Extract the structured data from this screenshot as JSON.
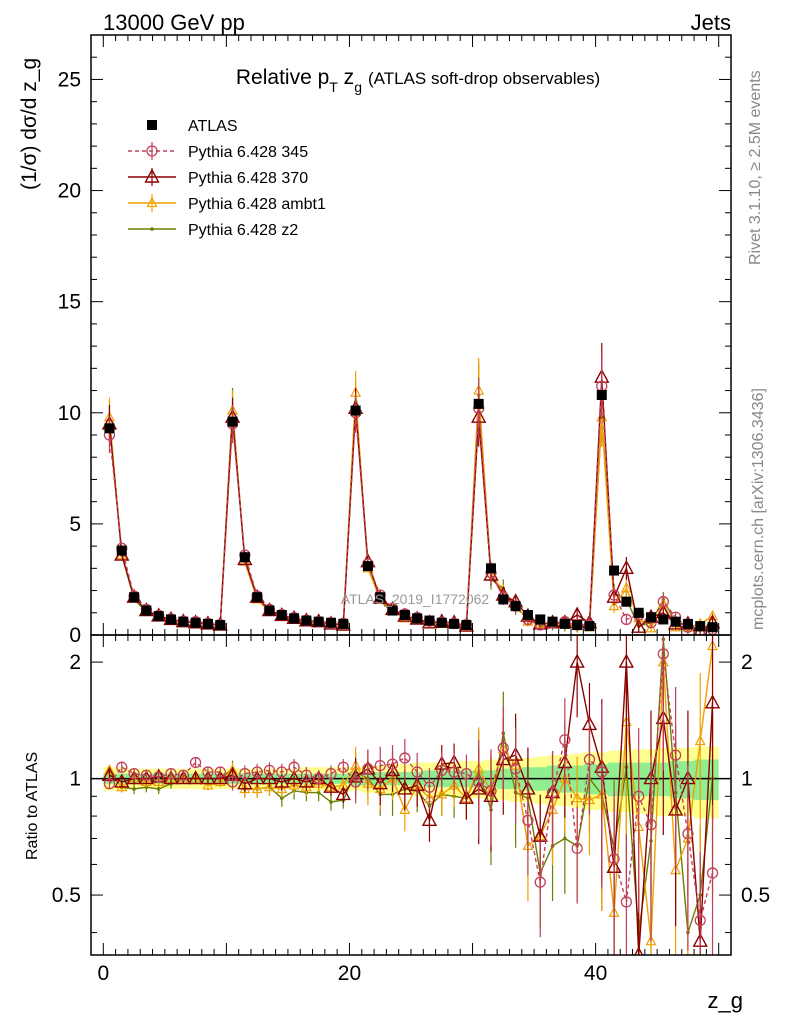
{
  "header": {
    "energy_label": "13000 GeV pp",
    "category_label": "Jets"
  },
  "side_labels": {
    "rivet": "Rivet 3.1.10, ≥ 2.5M events",
    "mcplots": "mcplots.cern.ch [arXiv:1306.3436]"
  },
  "watermark": "ATLAS_2019_I1772062",
  "colors": {
    "atlas": "#000000",
    "p345": "#c0405a",
    "p370": "#8b0000",
    "ambt1": "#f0a000",
    "z2": "#6b7f00",
    "band_inner": "#90ee90",
    "band_outer": "#ffff90"
  },
  "chart_data": [
    {
      "type": "line",
      "panel": "main",
      "title": "Relative p_T z_g (ATLAS soft-drop observables)",
      "title_parts": {
        "pre": "Relative p",
        "sub": "T",
        "mid": " z",
        "sub2": "g",
        "post": "(ATLAS soft-drop observables)"
      },
      "ylabel": "(1/σ) dσ/d z_g",
      "ylim": [
        0,
        27
      ],
      "xlim": [
        -1,
        51
      ],
      "yticks": [
        0,
        5,
        10,
        15,
        20,
        25
      ],
      "legend_position": "top-left",
      "x": [
        0.5,
        1.5,
        2.5,
        3.5,
        4.5,
        5.5,
        6.5,
        7.5,
        8.5,
        9.5,
        10.5,
        11.5,
        12.5,
        13.5,
        14.5,
        15.5,
        16.5,
        17.5,
        18.5,
        19.5,
        20.5,
        21.5,
        22.5,
        23.5,
        24.5,
        25.5,
        26.5,
        27.5,
        28.5,
        29.5,
        30.5,
        31.5,
        32.5,
        33.5,
        34.5,
        35.5,
        36.5,
        37.5,
        38.5,
        39.5,
        40.5,
        41.5,
        42.5,
        43.5,
        44.5,
        45.5,
        46.5,
        47.5,
        48.5,
        49.5
      ],
      "series": [
        {
          "name": "ATLAS",
          "key": "atlas",
          "marker": "square",
          "values": [
            9.3,
            3.8,
            1.7,
            1.1,
            0.85,
            0.7,
            0.6,
            0.55,
            0.5,
            0.45,
            9.6,
            3.5,
            1.7,
            1.1,
            0.9,
            0.75,
            0.65,
            0.6,
            0.55,
            0.5,
            10.1,
            3.1,
            1.7,
            1.1,
            0.9,
            0.75,
            0.65,
            0.55,
            0.5,
            0.45,
            10.4,
            3.0,
            1.6,
            1.3,
            0.9,
            0.7,
            0.6,
            0.5,
            0.45,
            0.4,
            10.8,
            2.9,
            1.5,
            1.0,
            0.8,
            0.7,
            0.6,
            0.5,
            0.4,
            0.35
          ]
        },
        {
          "name": "Pythia 6.428 345",
          "key": "p345",
          "marker": "circle-open",
          "dash": true,
          "values": [
            9.0,
            3.9,
            1.75,
            1.15,
            0.88,
            0.72,
            0.62,
            0.6,
            0.52,
            0.47,
            9.5,
            3.6,
            1.75,
            1.15,
            0.92,
            0.78,
            0.66,
            0.6,
            0.55,
            0.52,
            10.0,
            3.2,
            1.8,
            1.2,
            0.95,
            0.78,
            0.62,
            0.58,
            0.52,
            0.47,
            10.2,
            2.8,
            1.7,
            1.3,
            0.7,
            0.45,
            0.55,
            0.6,
            0.45,
            0.45,
            11.2,
            1.8,
            0.7,
            0.9,
            0.55,
            1.5,
            0.8,
            0.35,
            0.2,
            0.25
          ]
        },
        {
          "name": "Pythia 6.428 370",
          "key": "p370",
          "marker": "triangle-open",
          "values": [
            9.5,
            3.6,
            1.7,
            1.1,
            0.86,
            0.7,
            0.6,
            0.55,
            0.5,
            0.45,
            9.8,
            3.4,
            1.7,
            1.1,
            0.88,
            0.75,
            0.64,
            0.6,
            0.5,
            0.45,
            10.2,
            3.3,
            1.65,
            1.15,
            0.85,
            0.72,
            0.55,
            0.6,
            0.55,
            0.4,
            9.8,
            2.7,
            1.8,
            1.5,
            0.85,
            0.5,
            0.55,
            0.55,
            0.9,
            0.55,
            11.6,
            1.7,
            3.0,
            0.35,
            0.8,
            1.0,
            0.5,
            0.5,
            0.15,
            0.55
          ]
        },
        {
          "name": "Pythia 6.428 ambt1",
          "key": "ambt1",
          "marker": "triangle-small",
          "values": [
            9.8,
            3.6,
            1.7,
            1.08,
            0.83,
            0.7,
            0.6,
            0.55,
            0.48,
            0.44,
            10.1,
            3.3,
            1.6,
            1.05,
            0.85,
            0.72,
            0.62,
            0.58,
            0.52,
            0.48,
            10.9,
            3.0,
            1.6,
            1.1,
            0.75,
            0.72,
            0.58,
            0.5,
            0.48,
            0.4,
            11.0,
            2.8,
            1.9,
            1.4,
            0.6,
            0.5,
            0.5,
            0.5,
            0.4,
            0.35,
            9.8,
            1.3,
            2.1,
            0.75,
            0.3,
            1.4,
            0.35,
            0.35,
            0.5,
            0.85
          ]
        },
        {
          "name": "Pythia 6.428 z2",
          "key": "z2",
          "marker": "dot",
          "values": [
            9.7,
            3.6,
            1.6,
            1.05,
            0.8,
            0.68,
            0.6,
            0.55,
            0.5,
            0.45,
            10.2,
            3.3,
            1.6,
            1.05,
            0.8,
            0.7,
            0.6,
            0.55,
            0.48,
            0.44,
            10.5,
            3.1,
            1.55,
            1.0,
            0.85,
            0.7,
            0.55,
            0.5,
            0.45,
            0.4,
            10.8,
            2.5,
            2.1,
            1.2,
            0.8,
            0.4,
            0.4,
            0.35,
            0.3,
            0.4,
            9.8,
            1.9,
            1.6,
            0.4,
            0.55,
            1.6,
            0.55,
            0.2,
            0.2,
            0.35
          ]
        }
      ]
    },
    {
      "type": "line",
      "panel": "ratio",
      "ylabel": "Ratio to ATLAS",
      "xlabel": "z_g",
      "ylim": [
        0.35,
        2.35
      ],
      "yticks": [
        0.5,
        1,
        2
      ],
      "xticks": [
        0,
        20,
        40
      ],
      "x": [
        0.5,
        1.5,
        2.5,
        3.5,
        4.5,
        5.5,
        6.5,
        7.5,
        8.5,
        9.5,
        10.5,
        11.5,
        12.5,
        13.5,
        14.5,
        15.5,
        16.5,
        17.5,
        18.5,
        19.5,
        20.5,
        21.5,
        22.5,
        23.5,
        24.5,
        25.5,
        26.5,
        27.5,
        28.5,
        29.5,
        30.5,
        31.5,
        32.5,
        33.5,
        34.5,
        35.5,
        36.5,
        37.5,
        38.5,
        39.5,
        40.5,
        41.5,
        42.5,
        43.5,
        44.5,
        45.5,
        46.5,
        47.5,
        48.5,
        49.5
      ],
      "band_inner_halfwidth": [
        0.03,
        0.03,
        0.03,
        0.03,
        0.03,
        0.03,
        0.03,
        0.03,
        0.03,
        0.03,
        0.03,
        0.03,
        0.03,
        0.03,
        0.03,
        0.03,
        0.03,
        0.03,
        0.03,
        0.03,
        0.04,
        0.04,
        0.04,
        0.04,
        0.04,
        0.04,
        0.05,
        0.05,
        0.05,
        0.05,
        0.05,
        0.05,
        0.06,
        0.06,
        0.07,
        0.07,
        0.08,
        0.08,
        0.08,
        0.09,
        0.09,
        0.1,
        0.1,
        0.1,
        0.1,
        0.1,
        0.11,
        0.11,
        0.12,
        0.12
      ],
      "band_outer_halfwidth": [
        0.07,
        0.07,
        0.06,
        0.06,
        0.06,
        0.06,
        0.06,
        0.06,
        0.06,
        0.06,
        0.06,
        0.06,
        0.06,
        0.06,
        0.06,
        0.06,
        0.07,
        0.07,
        0.07,
        0.07,
        0.07,
        0.08,
        0.08,
        0.09,
        0.09,
        0.1,
        0.1,
        0.1,
        0.1,
        0.11,
        0.11,
        0.12,
        0.12,
        0.13,
        0.13,
        0.14,
        0.15,
        0.15,
        0.16,
        0.17,
        0.17,
        0.18,
        0.18,
        0.19,
        0.19,
        0.2,
        0.2,
        0.2,
        0.21,
        0.21
      ],
      "series": [
        {
          "name": "Pythia 6.428 345",
          "key": "p345",
          "marker": "circle-open",
          "dash": true,
          "values": [
            0.97,
            1.07,
            1.03,
            1.02,
            1.01,
            1.03,
            1.02,
            1.1,
            1.04,
            1.04,
            0.98,
            1.03,
            1.04,
            1.05,
            1.04,
            1.07,
            1.02,
            1.0,
            1.03,
            1.07,
            0.98,
            1.06,
            1.08,
            1.09,
            1.13,
            1.04,
            0.95,
            1.05,
            1.04,
            1.03,
            0.98,
            0.93,
            1.2,
            1.06,
            0.78,
            0.54,
            0.92,
            1.26,
            0.66,
            1.12,
            1.04,
            0.62,
            0.48,
            0.9,
            0.76,
            2.1,
            1.15,
            0.72,
            0.43,
            0.57
          ]
        },
        {
          "name": "Pythia 6.428 370",
          "key": "p370",
          "marker": "triangle-open",
          "values": [
            1.02,
            0.98,
            1.0,
            1.0,
            1.01,
            1.0,
            1.0,
            1.0,
            1.0,
            1.0,
            1.02,
            0.97,
            1.0,
            1.0,
            0.98,
            1.0,
            0.98,
            1.0,
            0.95,
            0.91,
            1.01,
            1.06,
            0.97,
            1.05,
            0.94,
            0.96,
            0.78,
            1.09,
            1.1,
            0.89,
            0.94,
            0.9,
            1.12,
            1.15,
            0.94,
            0.71,
            0.92,
            1.1,
            2.0,
            1.38,
            1.07,
            0.59,
            2.0,
            0.35,
            1.0,
            1.43,
            0.83,
            1.0,
            0.38,
            1.57
          ]
        },
        {
          "name": "Pythia 6.428 ambt1",
          "key": "ambt1",
          "marker": "triangle-small",
          "values": [
            1.05,
            0.95,
            1.0,
            0.98,
            0.98,
            1.0,
            1.0,
            1.0,
            0.96,
            0.98,
            1.05,
            0.94,
            0.94,
            0.95,
            0.94,
            0.96,
            0.95,
            0.97,
            0.95,
            0.96,
            1.08,
            0.97,
            0.94,
            1.0,
            0.83,
            0.96,
            0.89,
            0.91,
            0.96,
            0.89,
            1.06,
            0.93,
            1.19,
            1.08,
            0.67,
            0.71,
            0.83,
            1.0,
            0.89,
            0.88,
            0.91,
            0.45,
            1.4,
            0.75,
            0.38,
            2.0,
            0.58,
            0.7,
            1.25,
            2.2
          ]
        },
        {
          "name": "Pythia 6.428 z2",
          "key": "z2",
          "marker": "dot",
          "values": [
            1.04,
            0.95,
            0.94,
            0.95,
            0.94,
            0.97,
            1.0,
            1.0,
            1.0,
            1.0,
            1.06,
            0.94,
            0.94,
            0.95,
            0.89,
            0.93,
            0.92,
            0.92,
            0.87,
            0.88,
            1.04,
            1.0,
            0.91,
            0.91,
            0.94,
            0.93,
            0.85,
            0.91,
            0.9,
            0.89,
            1.04,
            0.83,
            1.31,
            0.92,
            0.89,
            0.57,
            0.67,
            0.7,
            0.67,
            1.0,
            0.91,
            0.66,
            1.07,
            0.4,
            0.69,
            2.29,
            0.92,
            0.4,
            0.5,
            1.0
          ]
        }
      ]
    }
  ]
}
